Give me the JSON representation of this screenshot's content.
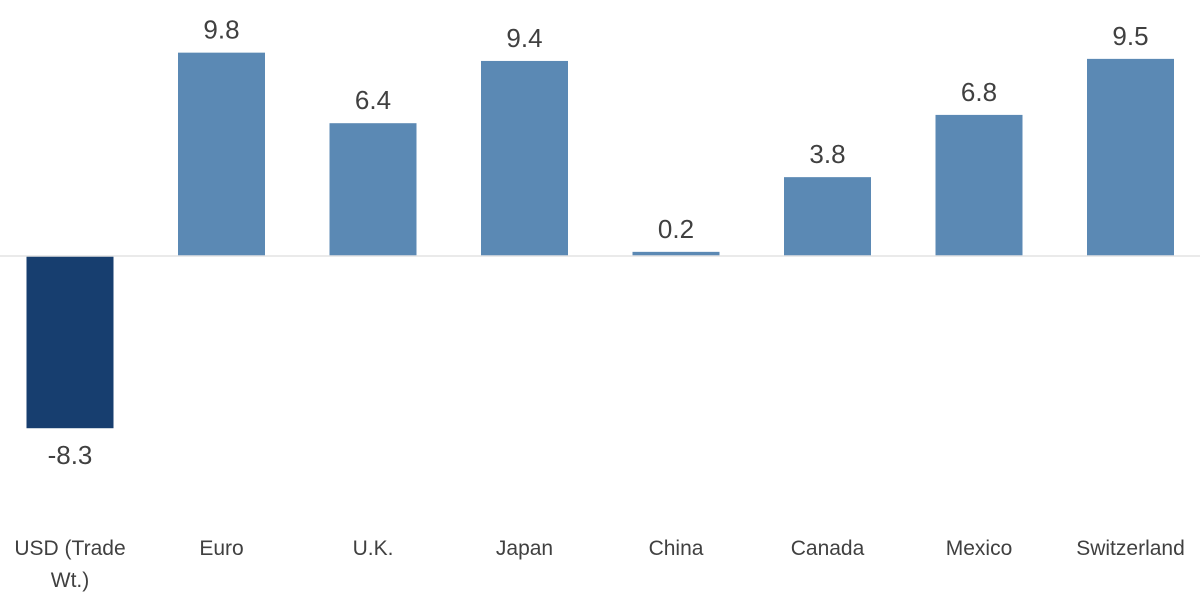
{
  "chart_data": {
    "type": "bar",
    "title": "",
    "xlabel": "",
    "ylabel": "",
    "categories": [
      [
        "USD (Trade",
        "Wt.)"
      ],
      [
        "Euro"
      ],
      [
        "U.K."
      ],
      [
        "Japan"
      ],
      [
        "China"
      ],
      [
        "Canada"
      ],
      [
        "Mexico"
      ],
      [
        "Switzerland"
      ]
    ],
    "values": [
      -8.3,
      9.8,
      6.4,
      9.4,
      0.2,
      3.8,
      6.8,
      9.5
    ],
    "value_labels": [
      "-8.3",
      "9.8",
      "6.4",
      "9.4",
      "0.2",
      "3.8",
      "6.8",
      "9.5"
    ],
    "highlight_index": 0,
    "colors": {
      "highlight": "#173e6f",
      "default": "#5b89b4",
      "zero_line": "#e3e3e3",
      "text": "#404040"
    },
    "ylim": [
      -12.3,
      12.3
    ],
    "grid": false,
    "legend": "none"
  }
}
